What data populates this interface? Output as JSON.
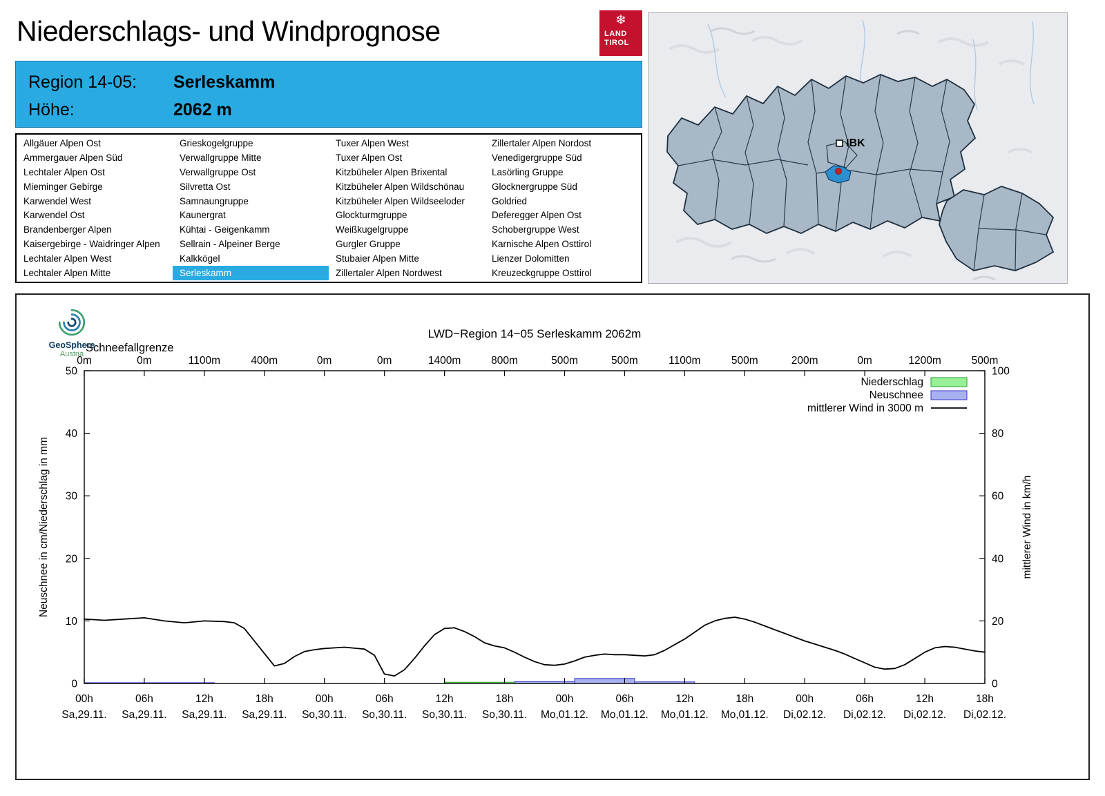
{
  "page": {
    "title": "Niederschlags- und Windprognose"
  },
  "logo": {
    "line1": "LAND",
    "line2": "TIROL",
    "color": "#c4112e"
  },
  "region_box": {
    "label_region": "Region 14-05:",
    "value_region": "Serleskamm",
    "label_altitude": "Höhe:",
    "value_altitude": "2062 m",
    "bg": "#29abe2"
  },
  "map": {
    "city_label": "IBK",
    "highlight_color": "#2b8fd0"
  },
  "region_list": {
    "selected": "Serleskamm",
    "columns": [
      [
        "Allgäuer Alpen Ost",
        "Ammergauer Alpen Süd",
        "Lechtaler Alpen Ost",
        "Mieminger Gebirge",
        "Karwendel West",
        "Karwendel Ost",
        "Brandenberger Alpen",
        "Kaisergebirge - Waidringer Alpen",
        "Lechtaler Alpen West",
        "Lechtaler Alpen Mitte"
      ],
      [
        "Grieskogelgruppe",
        "Verwallgruppe Mitte",
        "Verwallgruppe Ost",
        "Silvretta Ost",
        "Samnaungruppe",
        "Kaunergrat",
        "Kühtai - Geigenkamm",
        "Sellrain - Alpeiner Berge",
        "Kalkkögel",
        "Serleskamm"
      ],
      [
        "Tuxer Alpen West",
        "Tuxer Alpen Ost",
        "Kitzbüheler Alpen Brixental",
        "Kitzbüheler Alpen Wildschönau",
        "Kitzbüheler Alpen Wildseeloder",
        "Glockturmgruppe",
        "Weißkugelgruppe",
        "Gurgler Gruppe",
        "Stubaier Alpen Mitte",
        "Zillertaler Alpen Nordwest"
      ],
      [
        "Zillertaler Alpen Nordost",
        "Venedigergruppe Süd",
        "Lasörling Gruppe",
        "Glocknergruppe Süd",
        "Goldried",
        "Deferegger Alpen Ost",
        "Schobergruppe West",
        "Karnische Alpen Osttirol",
        "Lienzer Dolomitten",
        "Kreuzeckgruppe Osttirol"
      ]
    ]
  },
  "geosphere_logo": {
    "line1": "GeoSphere",
    "line2": "Austria"
  },
  "chart_data": {
    "type": "line+bar",
    "title": "LWD−Region 14−05 Serleskamm 2062m",
    "ylabel_left": "Neuschnee in cm/Niederschlag in mm",
    "ylabel_right": "mittlerer Wind in km/h",
    "ylim_left": [
      0,
      50
    ],
    "ylim_right": [
      0,
      100
    ],
    "x_hours_span": 90,
    "snowline_label": "Schneefallgrenze",
    "snowline_values": [
      "0m",
      "0m",
      "1100m",
      "400m",
      "0m",
      "0m",
      "1400m",
      "800m",
      "500m",
      "500m",
      "1100m",
      "500m",
      "200m",
      "0m",
      "1200m",
      "500m"
    ],
    "x_ticks": [
      {
        "time": "00h",
        "date": "Sa,29.11."
      },
      {
        "time": "06h",
        "date": "Sa,29.11."
      },
      {
        "time": "12h",
        "date": "Sa,29.11."
      },
      {
        "time": "18h",
        "date": "Sa,29.11."
      },
      {
        "time": "00h",
        "date": "So,30.11."
      },
      {
        "time": "06h",
        "date": "So,30.11."
      },
      {
        "time": "12h",
        "date": "So,30.11."
      },
      {
        "time": "18h",
        "date": "So,30.11."
      },
      {
        "time": "00h",
        "date": "Mo,01.12."
      },
      {
        "time": "06h",
        "date": "Mo,01.12."
      },
      {
        "time": "12h",
        "date": "Mo,01.12."
      },
      {
        "time": "18h",
        "date": "Mo,01.12."
      },
      {
        "time": "00h",
        "date": "Di,02.12."
      },
      {
        "time": "06h",
        "date": "Di,02.12."
      },
      {
        "time": "12h",
        "date": "Di,02.12."
      },
      {
        "time": "18h",
        "date": "Di,02.12."
      }
    ],
    "legend": [
      {
        "label": "Niederschlag",
        "type": "box",
        "fill": "#98f098",
        "edge": "#1fa01f"
      },
      {
        "label": "Neuschnee",
        "type": "box",
        "fill": "#a8b0f0",
        "edge": "#3838c8"
      },
      {
        "label": "mittlerer Wind in 3000 m",
        "type": "line",
        "color": "#000000"
      }
    ],
    "colors": {
      "niederschlag_fill": "#98f098",
      "niederschlag_edge": "#1fa01f",
      "neuschnee_fill": "#a8b0f0",
      "neuschnee_edge": "#3838c8",
      "wind": "#000000"
    },
    "niederschlag_bars": [
      {
        "from_h": 36,
        "to_h": 43,
        "value": 0.2,
        "unit": "mm"
      }
    ],
    "neuschnee_bars": [
      {
        "from_h": 0,
        "to_h": 13,
        "value": 0.12,
        "unit": "cm"
      },
      {
        "from_h": 43,
        "to_h": 49,
        "value": 0.3,
        "unit": "cm"
      },
      {
        "from_h": 49,
        "to_h": 55,
        "value": 0.8,
        "unit": "cm"
      },
      {
        "from_h": 55,
        "to_h": 61,
        "value": 0.25,
        "unit": "cm"
      }
    ],
    "wind_series": {
      "name": "mittlerer Wind in 3000 m",
      "unit": "km/h",
      "points": [
        [
          0,
          20.6
        ],
        [
          2,
          20.2
        ],
        [
          4,
          20.6
        ],
        [
          6,
          21.0
        ],
        [
          8,
          20.0
        ],
        [
          10,
          19.4
        ],
        [
          12,
          20.0
        ],
        [
          14,
          19.8
        ],
        [
          15,
          19.4
        ],
        [
          16,
          17.6
        ],
        [
          17,
          13.6
        ],
        [
          18,
          9.6
        ],
        [
          19,
          5.6
        ],
        [
          20,
          6.4
        ],
        [
          21,
          8.6
        ],
        [
          22,
          10.2
        ],
        [
          23,
          10.8
        ],
        [
          24,
          11.2
        ],
        [
          26,
          11.6
        ],
        [
          28,
          11.0
        ],
        [
          29,
          9.0
        ],
        [
          30,
          3.0
        ],
        [
          31,
          2.4
        ],
        [
          32,
          4.4
        ],
        [
          33,
          8.0
        ],
        [
          34,
          12.0
        ],
        [
          35,
          15.6
        ],
        [
          36,
          17.6
        ],
        [
          37,
          17.8
        ],
        [
          38,
          16.6
        ],
        [
          39,
          15.0
        ],
        [
          40,
          13.0
        ],
        [
          41,
          12.0
        ],
        [
          42,
          11.4
        ],
        [
          43,
          10.0
        ],
        [
          44,
          8.4
        ],
        [
          45,
          7.0
        ],
        [
          46,
          6.0
        ],
        [
          47,
          5.8
        ],
        [
          48,
          6.2
        ],
        [
          49,
          7.2
        ],
        [
          50,
          8.4
        ],
        [
          51,
          9.0
        ],
        [
          52,
          9.4
        ],
        [
          53,
          9.2
        ],
        [
          54,
          9.2
        ],
        [
          55,
          9.0
        ],
        [
          56,
          8.8
        ],
        [
          57,
          9.2
        ],
        [
          58,
          10.6
        ],
        [
          59,
          12.4
        ],
        [
          60,
          14.2
        ],
        [
          61,
          16.4
        ],
        [
          62,
          18.6
        ],
        [
          63,
          20.0
        ],
        [
          64,
          20.8
        ],
        [
          65,
          21.2
        ],
        [
          66,
          20.6
        ],
        [
          67,
          19.6
        ],
        [
          68,
          18.4
        ],
        [
          69,
          17.2
        ],
        [
          70,
          16.0
        ],
        [
          71,
          14.8
        ],
        [
          72,
          13.6
        ],
        [
          73,
          12.6
        ],
        [
          74,
          11.6
        ],
        [
          75,
          10.6
        ],
        [
          76,
          9.4
        ],
        [
          77,
          8.0
        ],
        [
          78,
          6.6
        ],
        [
          79,
          5.2
        ],
        [
          80,
          4.6
        ],
        [
          81,
          4.8
        ],
        [
          82,
          6.0
        ],
        [
          83,
          8.0
        ],
        [
          84,
          10.0
        ],
        [
          85,
          11.4
        ],
        [
          86,
          11.8
        ],
        [
          87,
          11.6
        ],
        [
          88,
          11.0
        ],
        [
          89,
          10.4
        ],
        [
          90,
          10.0
        ]
      ]
    }
  }
}
